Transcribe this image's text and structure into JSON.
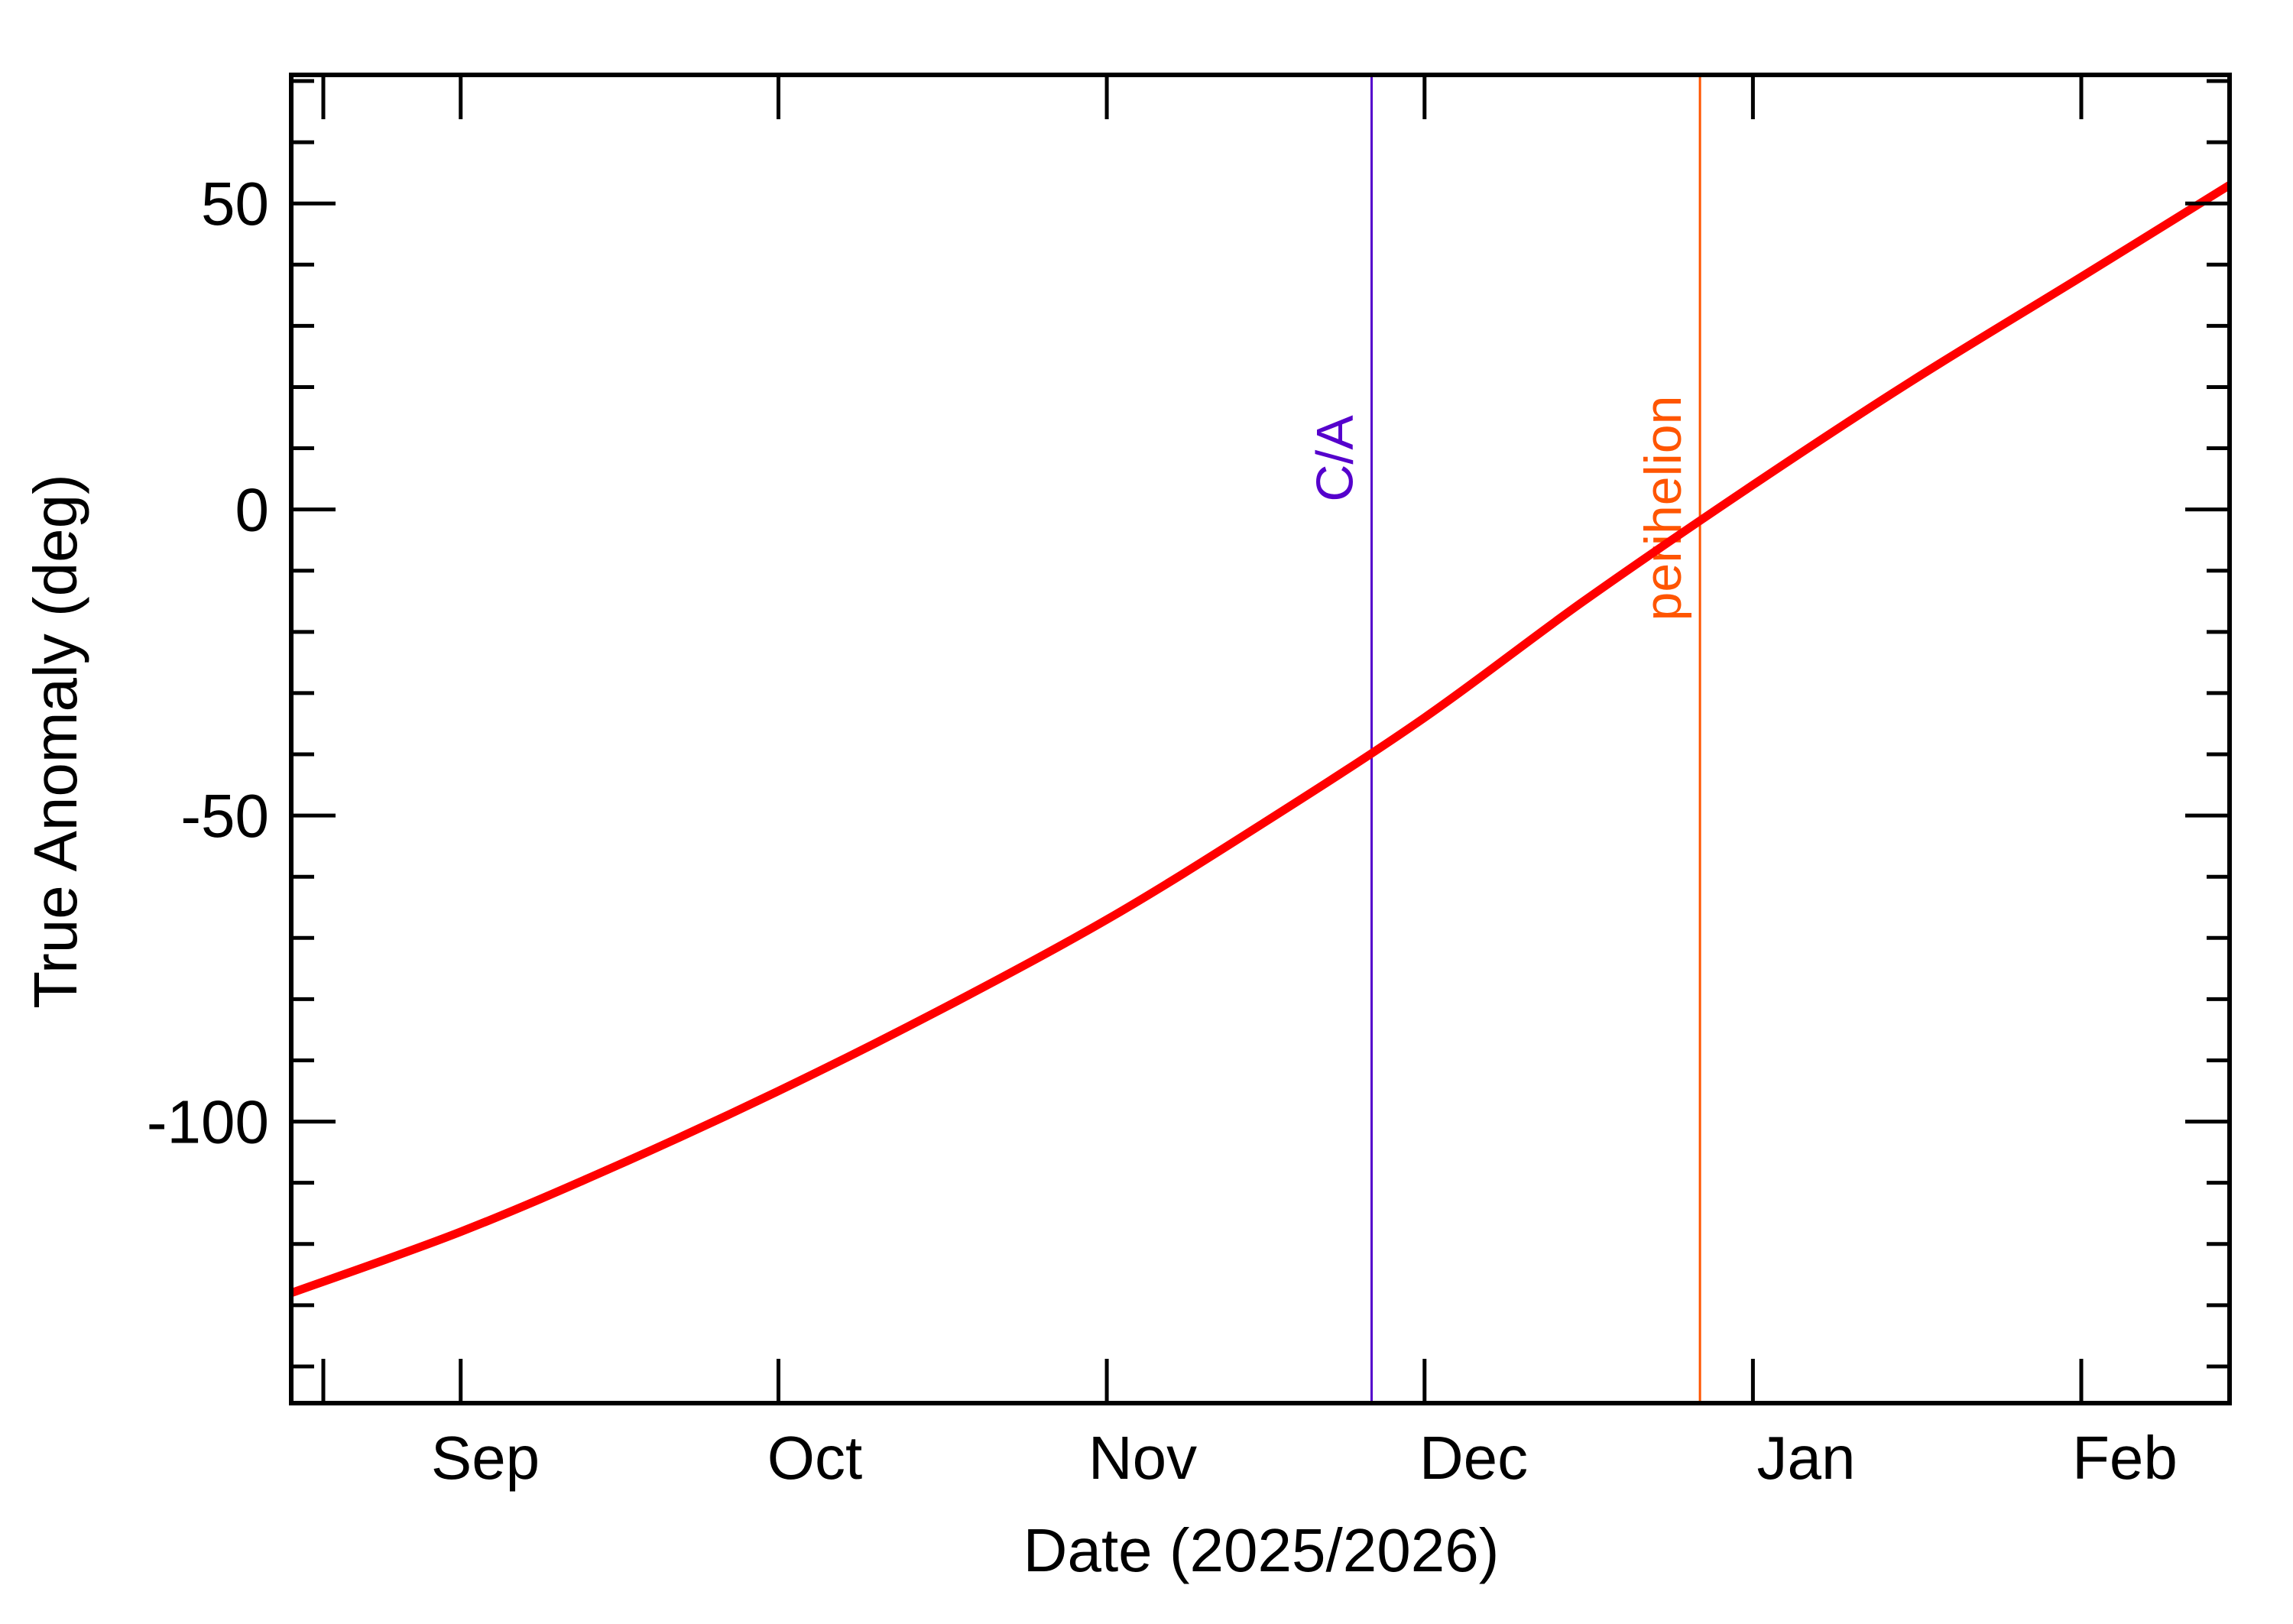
{
  "chart_data": {
    "type": "line",
    "title": "",
    "xlabel": "Date (2025/2026)",
    "ylabel": "True Anomaly (deg)",
    "x_range": [
      "2025-08-16",
      "2026-02-15"
    ],
    "ylim": [
      -146,
      71
    ],
    "x_ticks": [
      {
        "date": "2025-08-16",
        "label": ""
      },
      {
        "date": "2025-09-01",
        "label": ""
      },
      {
        "date": "2025-10-01",
        "label": ""
      },
      {
        "date": "2025-11-01",
        "label": ""
      },
      {
        "date": "2025-12-01",
        "label": ""
      },
      {
        "date": "2026-01-01",
        "label": ""
      },
      {
        "date": "2026-02-01",
        "label": ""
      }
    ],
    "x_month_labels": [
      {
        "date": "2025-09-16",
        "label": "Sep"
      },
      {
        "date": "2025-10-16",
        "label": "Oct"
      },
      {
        "date": "2025-11-16",
        "label": "Nov"
      },
      {
        "date": "2025-12-16",
        "label": "Dec"
      },
      {
        "date": "2026-01-16",
        "label": "Jan"
      },
      {
        "date": "2026-02-15",
        "label": "Feb"
      }
    ],
    "y_major_ticks": [
      50,
      0,
      -50,
      -100
    ],
    "y_tick_labels": [
      "50",
      "0",
      "-50",
      "-100"
    ],
    "y_minor_step": 10,
    "grid": false,
    "series": [
      {
        "color": "#ff0000",
        "points": [
          {
            "x": "2025-08-16",
            "y": -128
          },
          {
            "x": "2025-09-01",
            "y": -118
          },
          {
            "x": "2025-09-16",
            "y": -107
          },
          {
            "x": "2025-10-01",
            "y": -95
          },
          {
            "x": "2025-10-16",
            "y": -82
          },
          {
            "x": "2025-11-01",
            "y": -67
          },
          {
            "x": "2025-11-16",
            "y": -51
          },
          {
            "x": "2025-12-01",
            "y": -34
          },
          {
            "x": "2025-12-16",
            "y": -15
          },
          {
            "x": "2026-01-01",
            "y": 4
          },
          {
            "x": "2026-01-16",
            "y": 21
          },
          {
            "x": "2026-02-01",
            "y": 38
          },
          {
            "x": "2026-02-15",
            "y": 53
          }
        ]
      }
    ],
    "annotations": [
      {
        "label": "C/A",
        "x": "2025-11-26",
        "color": "#5500cc"
      },
      {
        "label": "perihelion",
        "x": "2025-12-27",
        "color": "#ff5500"
      }
    ]
  }
}
